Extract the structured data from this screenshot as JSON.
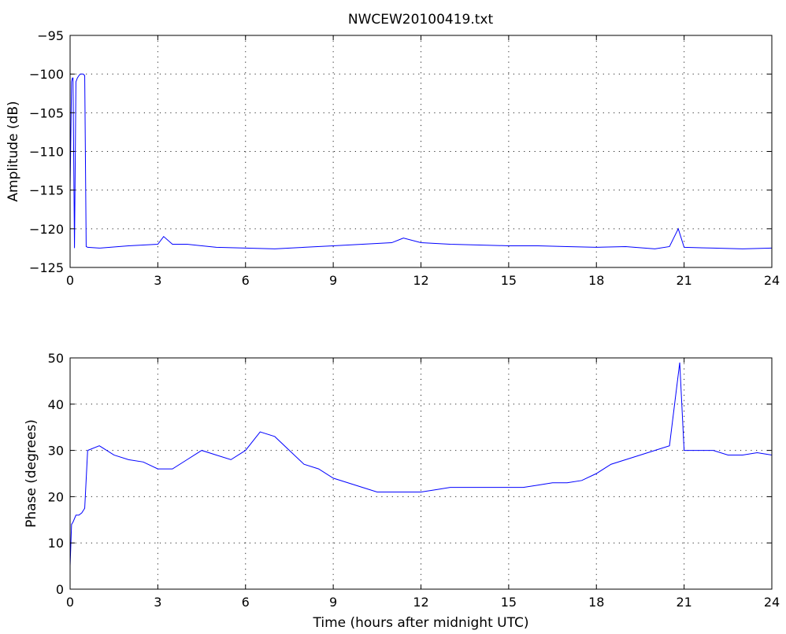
{
  "figure": {
    "title": "NWCEW20100419.txt"
  },
  "chart_data": [
    {
      "type": "line",
      "name": "amplitude-panel",
      "title": "NWCEW20100419.txt",
      "xlabel": "",
      "ylabel": "Amplitude (dB)",
      "xlim": [
        0,
        24
      ],
      "ylim": [
        -125,
        -95
      ],
      "xticks": [
        0,
        3,
        6,
        9,
        12,
        15,
        18,
        21,
        24
      ],
      "yticks": [
        -125,
        -120,
        -115,
        -110,
        -105,
        -100,
        -95
      ],
      "grid": true,
      "color": "#0000ff",
      "x": [
        0,
        0.05,
        0.08,
        0.1,
        0.15,
        0.2,
        0.25,
        0.3,
        0.35,
        0.4,
        0.45,
        0.5,
        0.55,
        0.6,
        1,
        2,
        3,
        3.2,
        3.5,
        4,
        5,
        6,
        7,
        8,
        9,
        10,
        11,
        11.4,
        12,
        13,
        14,
        15,
        16,
        17,
        18,
        19,
        20,
        20.5,
        20.8,
        21,
        22,
        23,
        24
      ],
      "y": [
        -115,
        -101,
        -100.5,
        -100.5,
        -122.5,
        -101,
        -100.5,
        -100.2,
        -100,
        -100,
        -100,
        -100.2,
        -122.3,
        -122.4,
        -122.5,
        -122.2,
        -122,
        -121,
        -122,
        -122,
        -122.4,
        -122.5,
        -122.6,
        -122.4,
        -122.2,
        -122,
        -121.8,
        -121.2,
        -121.8,
        -122,
        -122.1,
        -122.2,
        -122.2,
        -122.3,
        -122.4,
        -122.3,
        -122.6,
        -122.3,
        -120,
        -122.4,
        -122.5,
        -122.6,
        -122.5
      ]
    },
    {
      "type": "line",
      "name": "phase-panel",
      "title": "",
      "xlabel": "Time (hours after midnight UTC)",
      "ylabel": "Phase (degrees)",
      "xlim": [
        0,
        24
      ],
      "ylim": [
        0,
        50
      ],
      "xticks": [
        0,
        3,
        6,
        9,
        12,
        15,
        18,
        21,
        24
      ],
      "yticks": [
        0,
        10,
        20,
        30,
        40,
        50
      ],
      "grid": true,
      "color": "#0000ff",
      "x": [
        0,
        0.05,
        0.1,
        0.2,
        0.3,
        0.4,
        0.5,
        0.6,
        1,
        1.5,
        2,
        2.5,
        3,
        3.5,
        4,
        4.5,
        5,
        5.5,
        6,
        6.5,
        7,
        7.5,
        8,
        8.5,
        9,
        9.5,
        10,
        10.5,
        11,
        11.5,
        12,
        12.5,
        13,
        13.5,
        14,
        14.5,
        15,
        15.5,
        16,
        16.5,
        17,
        17.5,
        18,
        18.5,
        19,
        19.5,
        20,
        20.5,
        20.85,
        21,
        21.5,
        22,
        22.5,
        23,
        23.5,
        24
      ],
      "y": [
        5,
        14,
        14.5,
        16,
        16,
        16.5,
        17.5,
        30,
        31,
        29,
        28,
        27.5,
        26,
        26,
        28,
        30,
        29,
        28,
        30,
        34,
        33,
        30,
        27,
        26,
        24,
        23,
        22,
        21,
        21,
        21,
        21,
        21.5,
        22,
        22,
        22,
        22,
        22,
        22,
        22.5,
        23,
        23,
        23.5,
        25,
        27,
        28,
        29,
        30,
        31,
        49,
        30,
        30,
        30,
        29,
        29,
        29.5,
        29
      ]
    }
  ]
}
